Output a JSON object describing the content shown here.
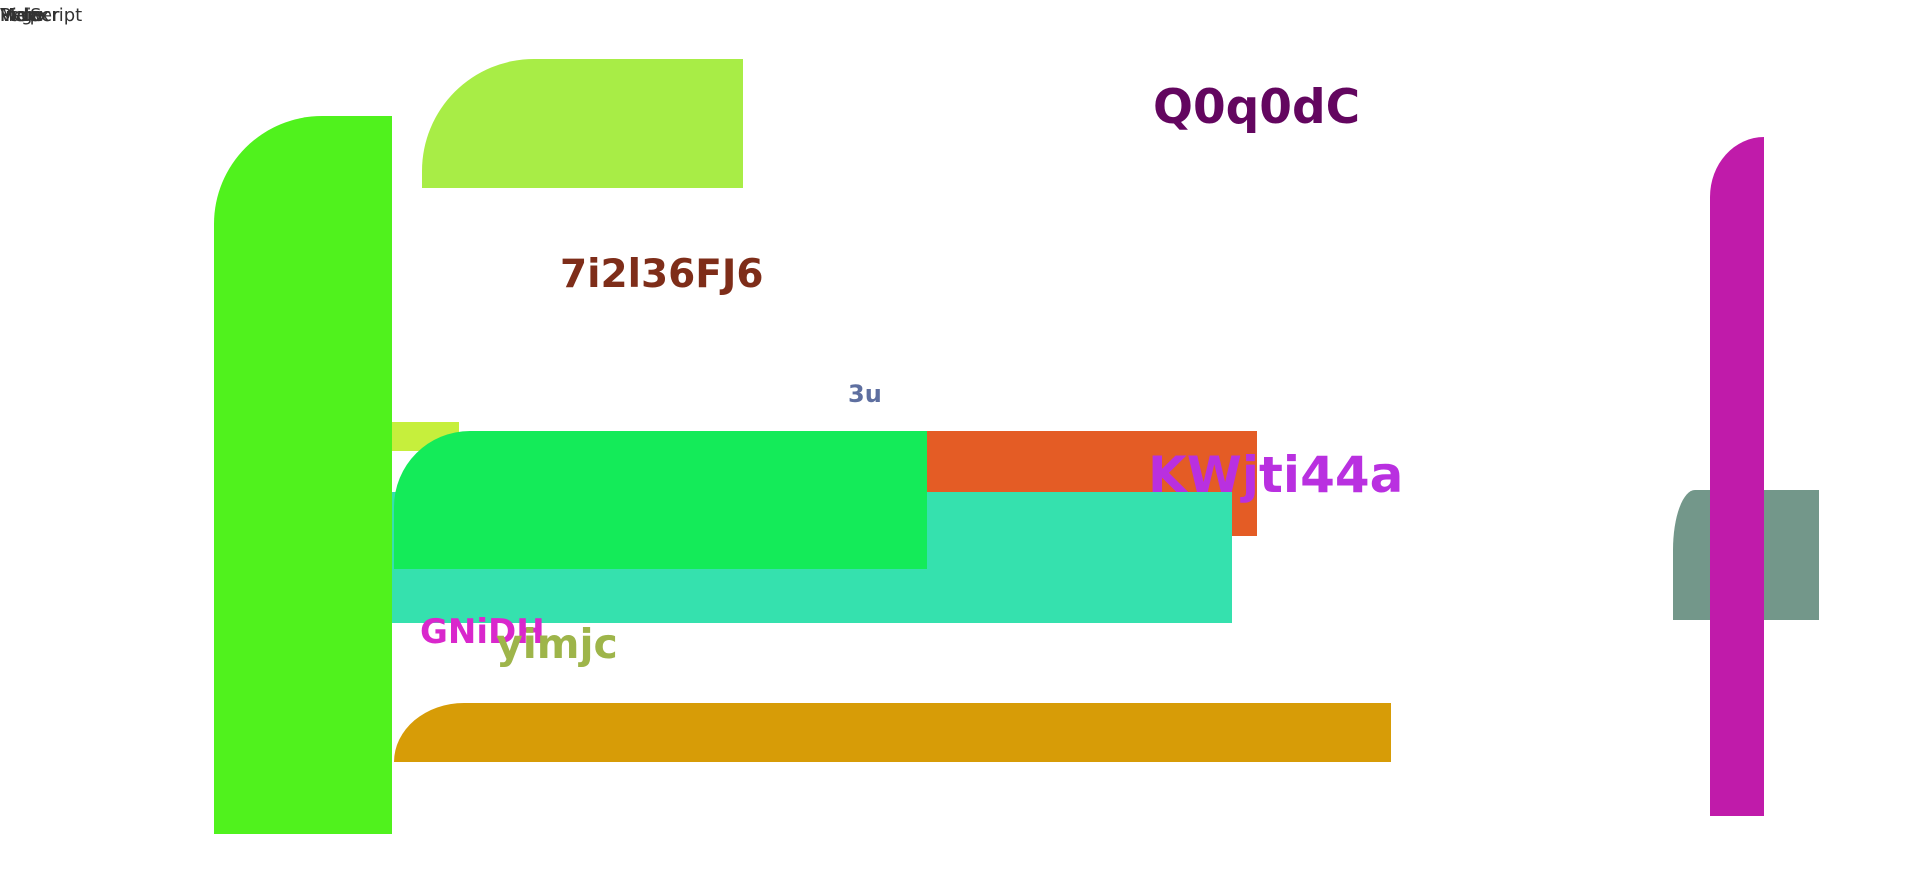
{
  "corner_words": [
    "Helper",
    "Script",
    "Page",
    "Main",
    "Index",
    "View"
  ],
  "labels": {
    "q0q0dc": "Q0q0dC",
    "code_7i2l": "7i2l36FJ6",
    "small_3u": "3u",
    "kwjti": "KWjti44a",
    "gnidh": "GNiDH",
    "yimjc": "yimjc"
  },
  "colors": {
    "bright_green": "#50f21d",
    "lime": "#a8ed46",
    "yellow_green": "#c6ef3c",
    "emerald": "#14eb59",
    "orange": "#e45c25",
    "teal": "#35e1ae",
    "gold": "#d79c07",
    "magenta": "#c01baa",
    "gray_green": "#73978a",
    "purple_dark": "#63065f",
    "brown": "#7e2d19",
    "slate": "#5e6fa0",
    "violet": "#b930e0",
    "pink_magenta": "#d927cc",
    "olive": "#9eb54a"
  }
}
